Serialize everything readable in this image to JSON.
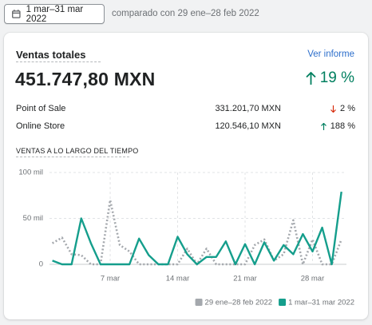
{
  "toolbar": {
    "date_range": "1 mar–31 mar 2022",
    "comparison": "comparado con 29 ene–28 feb 2022"
  },
  "card": {
    "title": "Ventas totales",
    "link": "Ver informe",
    "total": "451.747,80 MXN",
    "change": "19 %",
    "rows": [
      [
        "Point of Sale",
        "331.201,70 MXN",
        "2 %"
      ],
      [
        "Online Store",
        "120.546,10 MXN",
        "188 %"
      ]
    ],
    "section_title": "VENTAS A LO LARGO DEL TIEMPO"
  },
  "chart_data": {
    "type": "line",
    "categories": [
      null,
      null,
      null,
      null,
      null,
      null,
      "7 mar",
      null,
      null,
      null,
      null,
      null,
      null,
      "14 mar",
      null,
      null,
      null,
      null,
      null,
      null,
      "21 mar",
      null,
      null,
      null,
      null,
      null,
      null,
      "28 mar",
      null,
      null,
      null
    ],
    "series": [
      {
        "name": "29 ene–28 feb 2022",
        "color": "#a4a8ad",
        "style": "dotted",
        "values": [
          23000,
          29000,
          11000,
          10000,
          0,
          0,
          70000,
          21000,
          14000,
          0,
          0,
          0,
          0,
          0,
          17000,
          0,
          17000,
          0,
          0,
          0,
          0,
          21000,
          27000,
          4000,
          11000,
          48000,
          0,
          27000,
          0,
          0,
          27000
        ]
      },
      {
        "name": "1 mar–31 mar 2022",
        "color": "#159e8c",
        "style": "solid",
        "values": [
          4000,
          0,
          0,
          50000,
          23000,
          0,
          0,
          0,
          0,
          28000,
          10000,
          0,
          0,
          30000,
          11000,
          0,
          8000,
          8000,
          25000,
          0,
          22000,
          0,
          24000,
          4000,
          21000,
          11000,
          33000,
          14000,
          40000,
          0,
          79000
        ]
      }
    ],
    "ylim": [
      0,
      100000
    ],
    "yticks": [
      0,
      {
        "value": 50000,
        "label": "50 mil"
      },
      {
        "value": 100000,
        "label": "100 mil"
      }
    ],
    "grid": true,
    "legend": "bottom-right"
  }
}
